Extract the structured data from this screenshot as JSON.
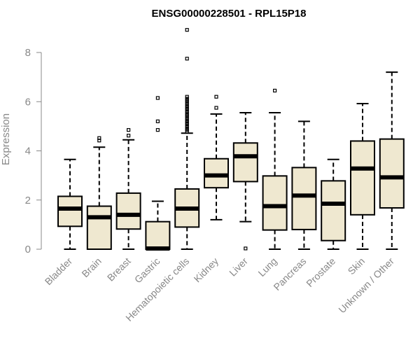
{
  "chart_data": {
    "type": "boxplot",
    "title": "ENSG00000228501 - RPL15P18",
    "xlabel": "",
    "ylabel": "Expression",
    "ylim": [
      0,
      9.2
    ],
    "yticks": [
      0,
      2,
      4,
      6,
      8
    ],
    "grid": false,
    "box_fill": "#efe8d0",
    "box_stroke": "#000000",
    "categories": [
      "Bladder",
      "Brain",
      "Breast",
      "Gastric",
      "Hematopoietic cells",
      "Kidney",
      "Liver",
      "Lung",
      "Pancreas",
      "Prostate",
      "Skin",
      "Unknown / Other"
    ],
    "boxes": [
      {
        "min": 0.0,
        "q1": 0.93,
        "median": 1.65,
        "q3": 2.15,
        "max": 3.65,
        "outliers": []
      },
      {
        "min": 0.0,
        "q1": 0.0,
        "median": 1.3,
        "q3": 1.75,
        "max": 4.15,
        "outliers": [
          4.42,
          4.52
        ]
      },
      {
        "min": 0.0,
        "q1": 0.82,
        "median": 1.4,
        "q3": 2.28,
        "max": 4.45,
        "outliers": [
          4.62,
          4.85
        ]
      },
      {
        "min": 0.0,
        "q1": 0.0,
        "median": 0.03,
        "q3": 1.12,
        "max": 1.95,
        "outliers": [
          4.85,
          5.2,
          6.15
        ]
      },
      {
        "min": 0.0,
        "q1": 0.9,
        "median": 1.65,
        "q3": 2.45,
        "max": 4.72,
        "outliers": [
          4.78,
          4.85,
          4.92,
          5.0,
          5.08,
          5.15,
          5.22,
          5.3,
          5.38,
          5.45,
          5.52,
          5.6,
          5.68,
          5.75,
          5.82,
          5.9,
          5.98,
          6.05,
          6.12,
          6.2,
          7.75,
          8.92
        ]
      },
      {
        "min": 1.2,
        "q1": 2.5,
        "median": 3.0,
        "q3": 3.68,
        "max": 5.5,
        "outliers": [
          5.75,
          6.2
        ]
      },
      {
        "min": 1.12,
        "q1": 2.75,
        "median": 3.78,
        "q3": 4.32,
        "max": 5.55,
        "outliers": [
          0.03
        ]
      },
      {
        "min": 0.0,
        "q1": 0.78,
        "median": 1.75,
        "q3": 2.98,
        "max": 5.55,
        "outliers": [
          6.45
        ]
      },
      {
        "min": 0.0,
        "q1": 0.8,
        "median": 2.18,
        "q3": 3.32,
        "max": 5.2,
        "outliers": []
      },
      {
        "min": 0.0,
        "q1": 0.35,
        "median": 1.85,
        "q3": 2.78,
        "max": 3.65,
        "outliers": []
      },
      {
        "min": 0.0,
        "q1": 1.4,
        "median": 3.28,
        "q3": 4.4,
        "max": 5.92,
        "outliers": []
      },
      {
        "min": 0.0,
        "q1": 1.68,
        "median": 2.92,
        "q3": 4.48,
        "max": 7.2,
        "outliers": []
      }
    ]
  }
}
